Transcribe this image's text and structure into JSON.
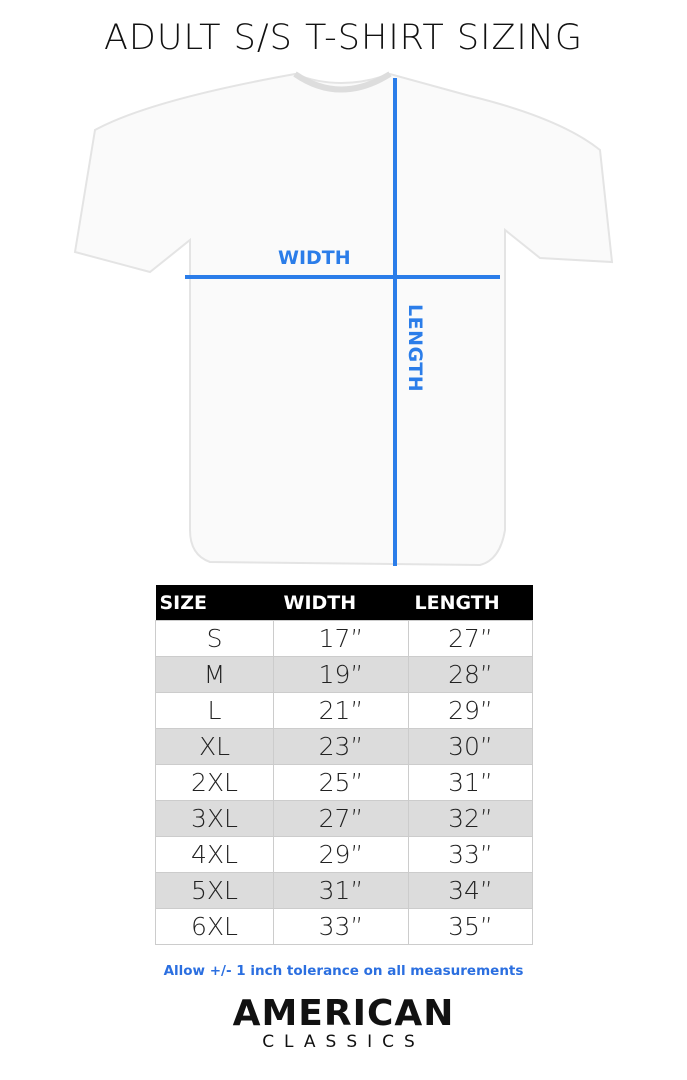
{
  "title": "ADULT S/S T-SHIRT SIZING",
  "diagram": {
    "width_label": "WIDTH",
    "length_label": "LENGTH",
    "line_color": "#2b7de9"
  },
  "table": {
    "headers": [
      "SIZE",
      "WIDTH",
      "LENGTH"
    ],
    "rows": [
      [
        "S",
        "17”",
        "27”"
      ],
      [
        "M",
        "19”",
        "28”"
      ],
      [
        "L",
        "21”",
        "29”"
      ],
      [
        "XL",
        "23”",
        "30”"
      ],
      [
        "2XL",
        "25”",
        "31”"
      ],
      [
        "3XL",
        "27”",
        "32”"
      ],
      [
        "4XL",
        "29”",
        "33”"
      ],
      [
        "5XL",
        "31”",
        "34”"
      ],
      [
        "6XL",
        "33”",
        "35”"
      ]
    ]
  },
  "note": "Allow +/- 1 inch tolerance on all measurements",
  "logo": {
    "line1": "AMERICAN",
    "line2": "CLASSICS"
  }
}
